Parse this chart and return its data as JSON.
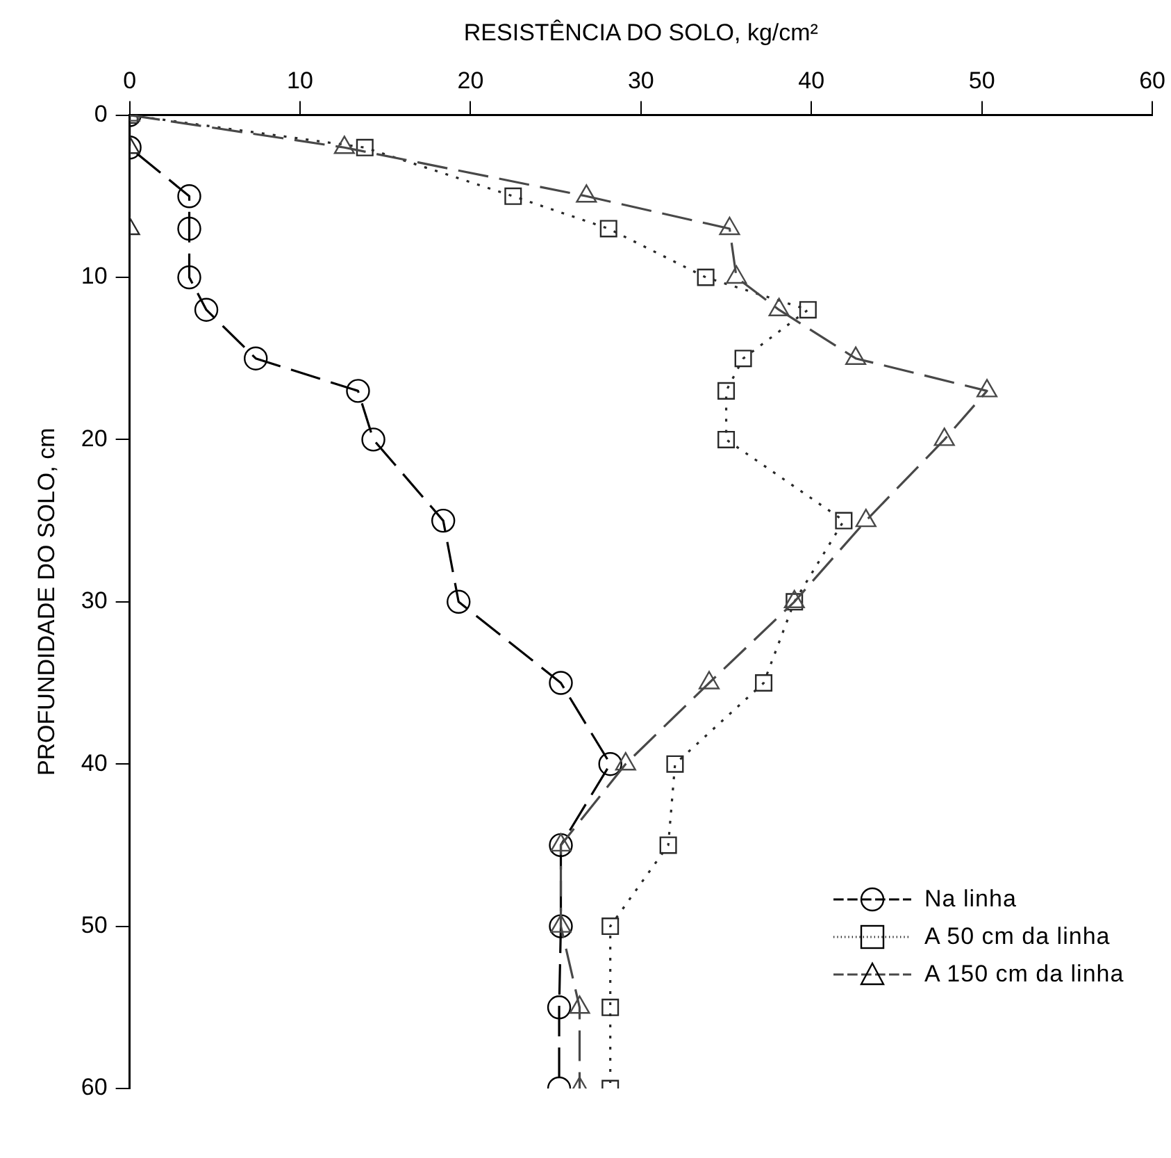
{
  "chart_data": {
    "type": "line",
    "xlabel": "RESISTÊNCIA DO SOLO, kg/cm²",
    "ylabel": "PROFUNDIDADE DO SOLO, cm",
    "xlim": [
      0,
      60
    ],
    "xticks": [
      0,
      10,
      20,
      30,
      40,
      50,
      60
    ],
    "ylim": [
      60,
      0
    ],
    "yticks": [
      0,
      10,
      20,
      30,
      40,
      50,
      60
    ],
    "grid": false,
    "legend": "bottom right",
    "series": [
      {
        "name": "Na linha",
        "color": "#000000",
        "marker": "circle",
        "line_style": "dashed",
        "x": [
          0,
          0,
          3.5,
          3.5,
          3.5,
          4.5,
          7.4,
          13.4,
          14.3,
          18.4,
          19.3,
          25.3,
          28.2,
          25.3,
          25.3,
          25.2,
          25.2
        ],
        "values": [
          0,
          2,
          5,
          7,
          10,
          12,
          15,
          17,
          20,
          25,
          30,
          35,
          40,
          45,
          50,
          55,
          60
        ]
      },
      {
        "name": "A 50 cm da linha",
        "color": "#282828",
        "marker": "square",
        "line_style": "dotted",
        "x": [
          0,
          13.8,
          22.5,
          28.1,
          33.8,
          39.8,
          36,
          35,
          35,
          41.9,
          39,
          37.2,
          32,
          31.6,
          28.2,
          28.2,
          28.2
        ],
        "values": [
          0,
          2,
          5,
          7,
          10,
          12,
          15,
          17,
          20,
          25,
          30,
          35,
          40,
          45,
          50,
          55,
          60
        ]
      },
      {
        "name": "A 150 cm da linha",
        "color": "#484848",
        "marker": "triangle",
        "line_style": "dashed",
        "x": [
          0,
          12.6,
          26.8,
          35.2,
          35.6,
          38.1,
          42.6,
          50.3,
          47.8,
          43.2,
          39,
          34,
          29.1,
          25.3,
          25.3,
          26.4,
          26.4
        ],
        "values": [
          0,
          2,
          5,
          7,
          10,
          12,
          15,
          17,
          20,
          25,
          30,
          35,
          40,
          45,
          50,
          55,
          60
        ]
      },
      {
        "type": "scatter",
        "color": "#282828",
        "marker": "triangle",
        "x": [
          0,
          0
        ],
        "values": [
          2,
          7
        ]
      }
    ]
  }
}
